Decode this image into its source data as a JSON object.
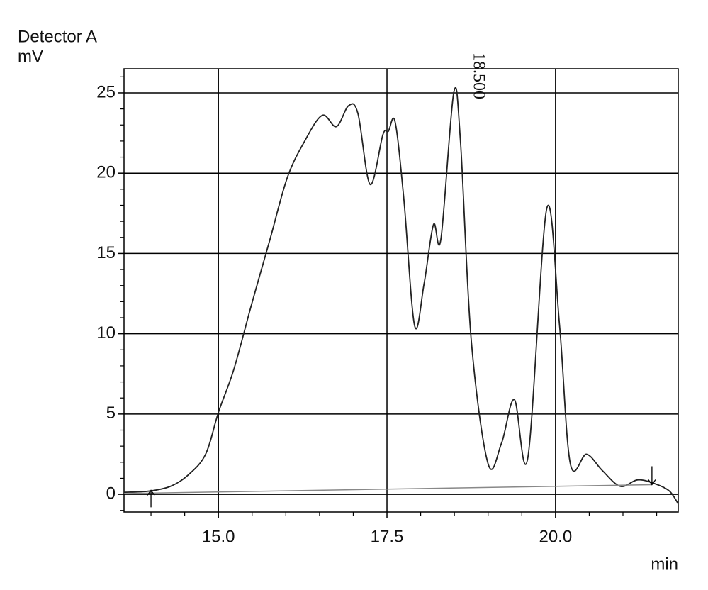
{
  "chart_data": {
    "type": "line",
    "y_label_line1": "Detector A",
    "y_label_line2": "mV",
    "x_label": "min",
    "xlim": [
      13.6,
      21.82
    ],
    "ylim": [
      -1.1,
      26.5
    ],
    "xticks": [
      {
        "value": 15,
        "label": "15.0"
      },
      {
        "value": 17.5,
        "label": "17.5"
      },
      {
        "value": 20,
        "label": "20.0"
      }
    ],
    "yticks": [
      0,
      5,
      10,
      15,
      20,
      25
    ],
    "xminorticks": [
      14,
      14.5,
      15.5,
      16,
      16.5,
      17,
      18,
      18.5,
      19,
      19.5,
      20.5,
      21,
      21.5
    ],
    "yminorticks": [
      -1,
      1,
      2,
      3,
      4,
      6,
      7,
      8,
      9,
      11,
      12,
      13,
      14,
      16,
      17,
      18,
      19,
      21,
      22,
      23,
      24,
      26
    ],
    "grid": true,
    "series": [
      {
        "color": "#222222",
        "x": [
          13.6,
          13.97,
          14.29,
          14.55,
          14.81,
          15.0,
          15.23,
          15.49,
          15.76,
          16.02,
          16.28,
          16.54,
          16.75,
          16.93,
          17.07,
          17.25,
          17.44,
          17.52,
          17.62,
          17.75,
          17.91,
          18.05,
          18.19,
          18.3,
          18.49,
          18.59,
          18.75,
          19.0,
          19.2,
          19.39,
          19.59,
          19.87,
          20.06,
          20.22,
          20.46,
          20.69,
          20.96,
          21.22,
          21.48,
          21.69,
          21.82
        ],
        "values": [
          0.13,
          0.2,
          0.5,
          1.2,
          2.5,
          5.1,
          7.8,
          11.8,
          15.8,
          19.7,
          22.0,
          23.6,
          22.9,
          24.2,
          23.7,
          19.3,
          22.4,
          22.6,
          23.2,
          18.4,
          10.5,
          13.1,
          16.8,
          15.9,
          25.0,
          22.0,
          9.6,
          1.9,
          3.2,
          5.9,
          2.3,
          17.8,
          10.5,
          1.9,
          2.5,
          1.5,
          0.5,
          0.9,
          0.65,
          0.2,
          -0.6
        ]
      },
      {
        "color": "#888888",
        "x": [
          13.6,
          21.43
        ],
        "values": [
          0.05,
          0.6
        ]
      }
    ],
    "annotations": [
      {
        "text": "18.500",
        "x": 18.5,
        "y": 25.0
      }
    ]
  }
}
